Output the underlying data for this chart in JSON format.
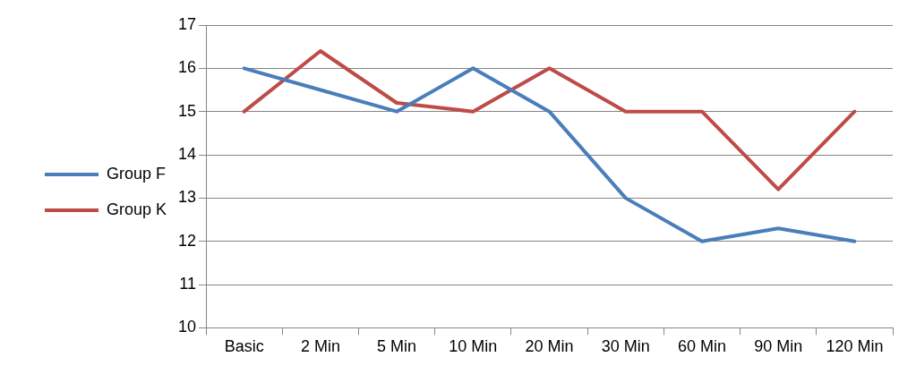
{
  "chart_data": {
    "type": "line",
    "categories": [
      "Basic",
      "2 Min",
      "5 Min",
      "10 Min",
      "20 Min",
      "30 Min",
      "60 Min",
      "90 Min",
      "120 Min"
    ],
    "series": [
      {
        "name": "Group F",
        "color": "#4a7ebb",
        "values": [
          16,
          15.5,
          15,
          16,
          15,
          13,
          12,
          12.3,
          12
        ]
      },
      {
        "name": "Group K",
        "color": "#be4b48",
        "values": [
          15,
          16.4,
          15.2,
          15,
          16,
          15,
          15,
          13.2,
          15
        ]
      }
    ],
    "ylim": [
      10,
      17
    ],
    "yticks": [
      10,
      11,
      12,
      13,
      14,
      15,
      16,
      17
    ],
    "grid": "y",
    "legend": "left",
    "marker": "none",
    "line_style": "solid"
  }
}
